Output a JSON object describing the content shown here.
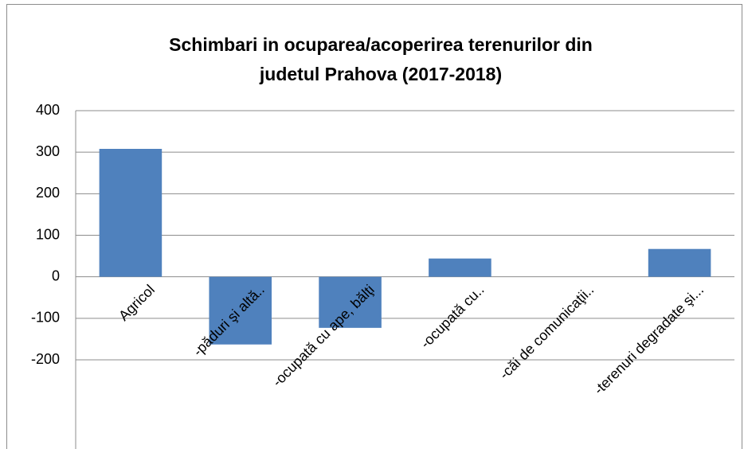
{
  "chart_data": {
    "type": "bar",
    "title": "Schimbari in ocuparea/acoperirea terenurilor din judetul Prahova (2017-2018)",
    "categories": [
      "Agricol",
      "-păduri şi altă..",
      "-ocupată cu ape, bălţi",
      "-ocupată cu..",
      "-căi de comunicaţii..",
      "-terenuri degradate şi..."
    ],
    "values": [
      308,
      -163,
      -123,
      44,
      0,
      67
    ],
    "color": "#4f81bd",
    "ylim": [
      -200,
      400
    ],
    "yticks": [
      -200,
      -100,
      0,
      100,
      200,
      300,
      400
    ],
    "grid": true
  }
}
